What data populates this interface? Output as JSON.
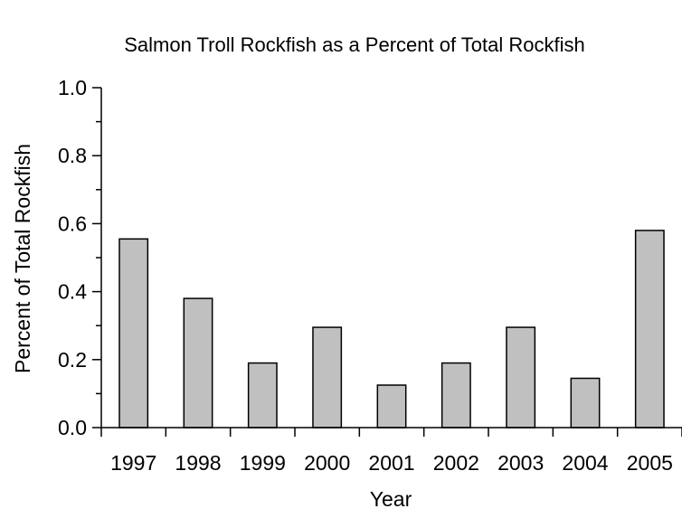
{
  "chart_data": {
    "type": "bar",
    "title": "Salmon Troll Rockfish as a Percent of Total Rockfish",
    "xlabel": "Year",
    "ylabel": "Percent of Total Rockfish",
    "categories": [
      "1997",
      "1998",
      "1999",
      "2000",
      "2001",
      "2002",
      "2003",
      "2004",
      "2005"
    ],
    "values": [
      0.555,
      0.38,
      0.19,
      0.295,
      0.125,
      0.19,
      0.295,
      0.145,
      0.58
    ],
    "ylim": [
      0,
      1.0
    ],
    "yticks": [
      "0.0",
      "0.2",
      "0.4",
      "0.6",
      "0.8",
      "1.0"
    ],
    "grid": false,
    "legend": "none",
    "bar_color": "#c0c0c0"
  }
}
